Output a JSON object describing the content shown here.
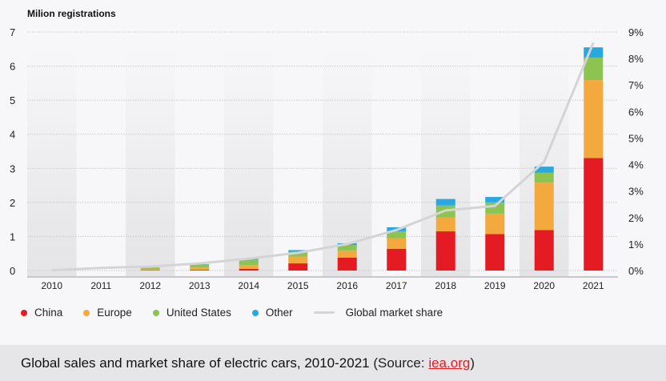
{
  "chart_data": {
    "type": "bar",
    "stacked": true,
    "title": "Global sales and market share of electric cars, 2010-2021",
    "ylabel": "Milion registrations",
    "y2label": "",
    "categories": [
      "2010",
      "2011",
      "2012",
      "2013",
      "2014",
      "2015",
      "2016",
      "2017",
      "2018",
      "2019",
      "2020",
      "2021"
    ],
    "ylim": [
      0,
      7
    ],
    "y_ticks": [
      "0",
      "1",
      "2",
      "3",
      "4",
      "5",
      "6",
      "7"
    ],
    "y2lim": [
      0,
      9
    ],
    "y2_ticks": [
      "0%",
      "1%",
      "2%",
      "3%",
      "4%",
      "5%",
      "6%",
      "7%",
      "8%",
      "9%"
    ],
    "series": [
      {
        "name": "China",
        "color": "#e41b23",
        "values": [
          0,
          0,
          0.01,
          0.02,
          0.05,
          0.21,
          0.38,
          0.64,
          1.15,
          1.07,
          1.19,
          3.3
        ]
      },
      {
        "name": "Europe",
        "color": "#f4a93f",
        "values": [
          0,
          0,
          0.03,
          0.07,
          0.11,
          0.2,
          0.21,
          0.31,
          0.41,
          0.6,
          1.39,
          2.29
        ]
      },
      {
        "name": "United States",
        "color": "#8dc351",
        "values": [
          0,
          0,
          0.05,
          0.09,
          0.16,
          0.14,
          0.16,
          0.2,
          0.35,
          0.33,
          0.29,
          0.66
        ]
      },
      {
        "name": "Other",
        "color": "#28a8e0",
        "values": [
          0,
          0,
          0,
          0.01,
          0.02,
          0.05,
          0.05,
          0.12,
          0.19,
          0.16,
          0.18,
          0.3
        ]
      }
    ],
    "line_series": {
      "name": "Global market share",
      "color": "#d4d4d6",
      "axis": "right",
      "unit": "%",
      "values": [
        0.01,
        0.1,
        0.15,
        0.27,
        0.45,
        0.67,
        1.0,
        1.53,
        2.27,
        2.44,
        4.1,
        8.6
      ]
    },
    "grid": true,
    "legend_position": "bottom-left"
  },
  "legend": [
    {
      "label": "China",
      "color": "#e41b23",
      "kind": "dot"
    },
    {
      "label": "Europe",
      "color": "#f4a93f",
      "kind": "dot"
    },
    {
      "label": "United States",
      "color": "#8dc351",
      "kind": "dot"
    },
    {
      "label": "Other",
      "color": "#28a8e0",
      "kind": "dot"
    },
    {
      "label": "Global market share",
      "color": "#d4d4d6",
      "kind": "line"
    }
  ],
  "caption": {
    "title": "Global sales and market share of electric cars, 2010-2021",
    "source_prefix": " (Source: ",
    "source_link": "iea.org",
    "source_suffix": ")"
  }
}
